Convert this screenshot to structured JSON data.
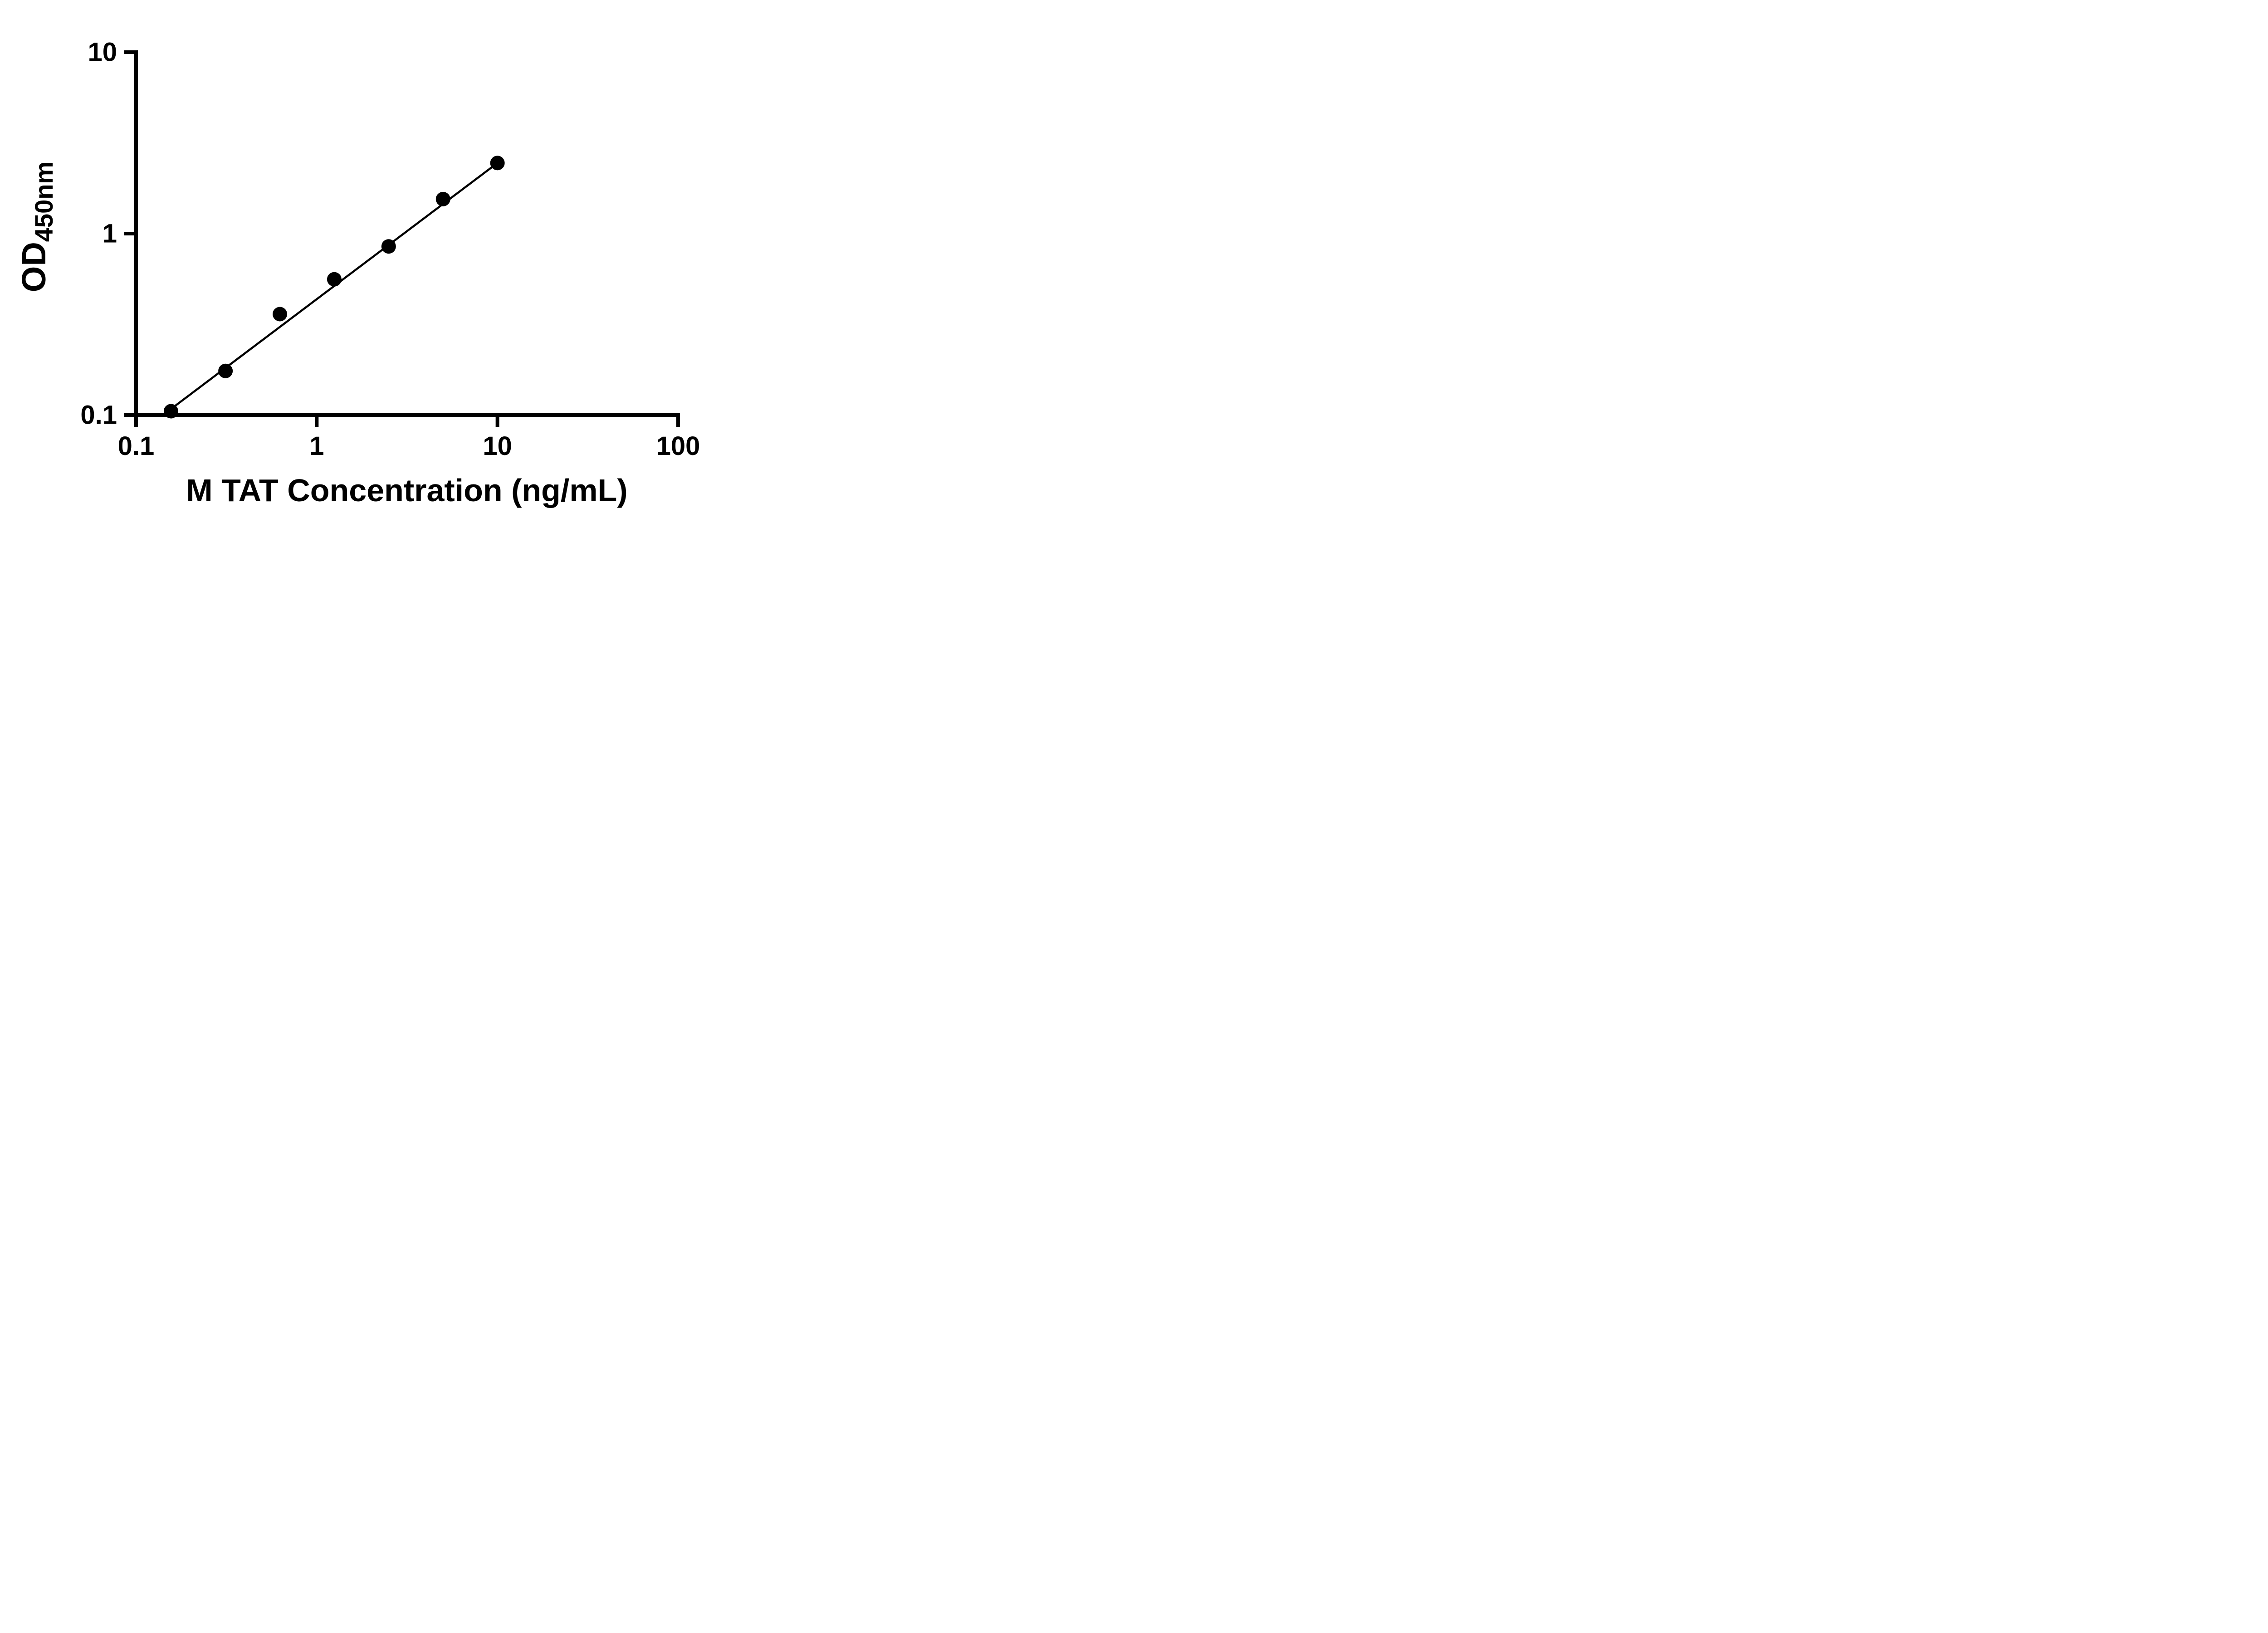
{
  "chart_data": {
    "type": "scatter",
    "title": "",
    "xlabel": "M TAT Concentration (ng/mL)",
    "ylabel": "OD",
    "ylabel_subscript": "450nm",
    "x_scale": "log",
    "y_scale": "log",
    "xlim": [
      0.1,
      100
    ],
    "ylim": [
      0.1,
      10
    ],
    "x_ticks": [
      0.1,
      1,
      10,
      100
    ],
    "x_tick_labels": [
      "0.1",
      "1",
      "10",
      "100"
    ],
    "y_ticks": [
      0.1,
      1,
      10
    ],
    "y_tick_labels": [
      "0.1",
      "1",
      "10"
    ],
    "grid": false,
    "legend": false,
    "marker_color": "#000000",
    "line_color": "#000000",
    "axis_color": "#000000",
    "points": [
      {
        "x": 0.156,
        "y": 0.105
      },
      {
        "x": 0.3125,
        "y": 0.175
      },
      {
        "x": 0.625,
        "y": 0.36
      },
      {
        "x": 1.25,
        "y": 0.56
      },
      {
        "x": 2.5,
        "y": 0.85
      },
      {
        "x": 5,
        "y": 1.55
      },
      {
        "x": 10,
        "y": 2.45
      }
    ],
    "trend_line": {
      "x1": 0.156,
      "y1": 0.108,
      "x2": 10,
      "y2": 2.45
    }
  }
}
